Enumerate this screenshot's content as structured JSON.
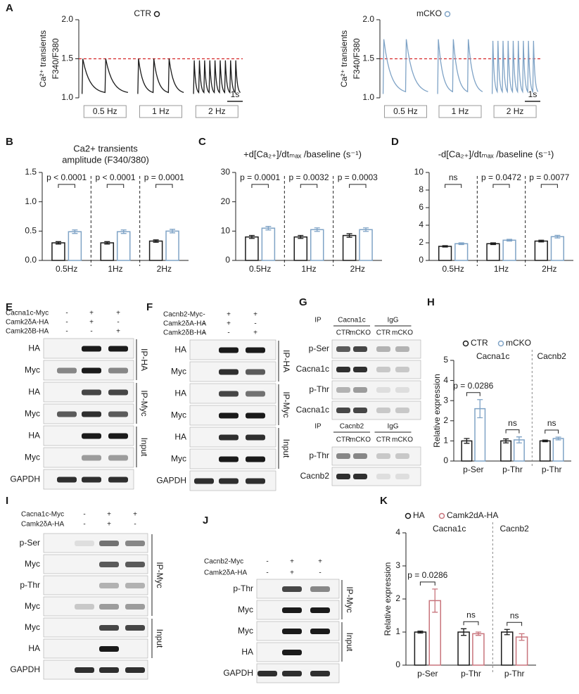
{
  "panel_labels": [
    "A",
    "B",
    "C",
    "D",
    "E",
    "F",
    "G",
    "H",
    "I",
    "J",
    "K"
  ],
  "traces": [
    {
      "legend": "CTR",
      "color": "#1a1a1a",
      "y_label": [
        "Ca²⁺ transients",
        "F340/F380"
      ],
      "ylim": [
        1,
        2
      ],
      "yticks": [
        {
          "value": 1,
          "label": "1.0"
        },
        1.5,
        {
          "value": 2,
          "label": "2.0"
        }
      ],
      "reference_line": 1.5,
      "reference_color": "#d62728",
      "scale_bar": "1s",
      "frequencies": [
        "0.5 Hz",
        "1 Hz",
        "2 Hz"
      ]
    },
    {
      "legend": "mCKO",
      "color": "#7fa3c6",
      "y_label": [
        "Ca²⁺ transients",
        "F340/F380"
      ],
      "ylim": [
        1,
        2
      ],
      "yticks": [
        {
          "value": 1,
          "label": "1.0"
        },
        1.5,
        {
          "value": 2,
          "label": "2.0"
        }
      ],
      "reference_line": 1.5,
      "reference_color": "#d62728",
      "scale_bar": "1s",
      "frequencies": [
        "0.5 Hz",
        "1 Hz",
        "2 Hz"
      ]
    }
  ],
  "chart_data": [
    {
      "type": "bar",
      "title": [
        "Ca2+ transients",
        "amplitude (F340/380)"
      ],
      "categories": [
        "0.5Hz",
        "1Hz",
        "2Hz"
      ],
      "series": [
        {
          "color": "#1a1a1a",
          "values": [
            0.3,
            0.3,
            0.33
          ],
          "errors": [
            0.02,
            0.02,
            0.02
          ]
        },
        {
          "color": "#7fa3c6",
          "values": [
            0.49,
            0.49,
            0.5
          ],
          "errors": [
            0.03,
            0.03,
            0.03
          ]
        }
      ],
      "ylim": [
        0,
        1.5
      ],
      "yticks": [
        {
          "value": 0,
          "label": "0.0"
        },
        0.5,
        {
          "value": 1,
          "label": "1.0"
        },
        1.5
      ],
      "annotations": [
        "p < 0.0001",
        "p < 0.0001",
        "p = 0.0001"
      ]
    },
    {
      "type": "bar",
      "title": "+d[Ca₂₊]/dtₘₐₓ /baseline (s⁻¹)",
      "categories": [
        "0.5Hz",
        "1Hz",
        "2Hz"
      ],
      "series": [
        {
          "color": "#1a1a1a",
          "values": [
            8,
            8,
            8.5
          ],
          "errors": [
            0.5,
            0.5,
            0.6
          ]
        },
        {
          "color": "#7fa3c6",
          "values": [
            11,
            10.5,
            10.5
          ],
          "errors": [
            0.6,
            0.6,
            0.6
          ]
        }
      ],
      "ylim": [
        0,
        30
      ],
      "yticks": [
        0,
        10,
        20,
        30
      ],
      "annotations": [
        "p = 0.0001",
        "p = 0.0032",
        "p = 0.0003"
      ]
    },
    {
      "type": "bar",
      "title": "-d[Ca₂₊]/dtₘₐₓ /baseline (s⁻¹)",
      "categories": [
        "0.5Hz",
        "1Hz",
        "2Hz"
      ],
      "series": [
        {
          "color": "#1a1a1a",
          "values": [
            1.6,
            1.9,
            2.2
          ],
          "errors": [
            0.08,
            0.1,
            0.1
          ]
        },
        {
          "color": "#7fa3c6",
          "values": [
            1.9,
            2.3,
            2.7
          ],
          "errors": [
            0.1,
            0.1,
            0.15
          ]
        }
      ],
      "ylim": [
        0,
        10
      ],
      "yticks": [
        0,
        2,
        4,
        6,
        8,
        10
      ],
      "annotations": [
        "ns",
        "p = 0.0472",
        "p = 0.0077"
      ]
    },
    {
      "type": "bar",
      "y_label": "Relative expression",
      "categories": [
        "p-Ser",
        "p-Thr",
        "p-Thr"
      ],
      "group_labels": [
        "Cacna1c",
        "Cacnb2"
      ],
      "series": [
        {
          "name": "CTR",
          "color": "#1a1a1a",
          "values": [
            1,
            1,
            1
          ],
          "errors": [
            0.12,
            0.1,
            0.04
          ]
        },
        {
          "name": "mCKO",
          "color": "#7fa3c6",
          "values": [
            2.6,
            1.05,
            1.12
          ],
          "errors": [
            0.45,
            0.15,
            0.07
          ]
        }
      ],
      "ylim": [
        0,
        5
      ],
      "yticks": [
        0,
        1,
        2,
        3,
        4,
        5
      ],
      "annotations": [
        "p = 0.0286",
        "ns",
        "ns"
      ]
    },
    {
      "type": "bar",
      "y_label": "Relative expression",
      "categories": [
        "p-Ser",
        "p-Thr",
        "p-Thr"
      ],
      "group_labels": [
        "Cacna1c",
        "Cacnb2"
      ],
      "series": [
        {
          "name": "HA",
          "color": "#1a1a1a",
          "values": [
            1,
            1,
            1
          ],
          "errors": [
            0.03,
            0.1,
            0.08
          ]
        },
        {
          "name": "Camk2dA-HA",
          "color": "#c8747c",
          "values": [
            1.95,
            0.95,
            0.85
          ],
          "errors": [
            0.35,
            0.05,
            0.1
          ]
        }
      ],
      "ylim": [
        0,
        4
      ],
      "yticks": [
        0,
        1,
        2,
        3,
        4
      ],
      "annotations": [
        "p = 0.0286",
        "ns",
        "ns"
      ]
    }
  ],
  "blots": [
    {
      "conditions": [
        {
          "name": "Cacna1c-Myc",
          "signs": [
            "-",
            "+",
            "+"
          ]
        },
        {
          "name": "Camk2δA-HA",
          "signs": [
            "-",
            "+",
            "-"
          ]
        },
        {
          "name": "Camk2δB-HA",
          "signs": [
            "-",
            "-",
            "+"
          ]
        }
      ],
      "rows": [
        "HA",
        "Myc",
        "HA",
        "Myc",
        "HA",
        "Myc",
        "GAPDH"
      ],
      "groups": [
        "IP-HA",
        "IP-Myc",
        "Input"
      ]
    },
    {
      "conditions": [
        {
          "name": "Cacnb2-Myc",
          "signs": [
            "-",
            "+",
            "+"
          ]
        },
        {
          "name": "Camk2δA-HA",
          "signs": [
            "-",
            "+",
            "-"
          ]
        },
        {
          "name": "Camk2δB-HA",
          "signs": [
            "-",
            "-",
            "+"
          ]
        }
      ],
      "rows": [
        "HA",
        "Myc",
        "HA",
        "Myc",
        "HA",
        "Myc",
        "GAPDH"
      ],
      "groups": [
        "IP-HA",
        "IP-Myc",
        "Input"
      ]
    },
    {
      "sections": [
        {
          "ip": "IP",
          "targets": [
            "Cacna1c",
            "IgG"
          ],
          "lanes": [
            "CTR",
            "mCKO",
            "CTR",
            "mCKO"
          ],
          "rows": [
            "p-Ser",
            "Cacna1c",
            "p-Thr",
            "Cacna1c"
          ]
        },
        {
          "ip": "IP",
          "targets": [
            "Cacnb2",
            "IgG"
          ],
          "lanes": [
            "CTR",
            "mCKO",
            "CTR",
            "mCKO"
          ],
          "rows": [
            "p-Thr",
            "Cacnb2"
          ]
        }
      ]
    },
    {
      "conditions": [
        {
          "name": "Cacna1c-Myc",
          "signs": [
            "-",
            "+",
            "+"
          ]
        },
        {
          "name": "Camk2δA-HA",
          "signs": [
            "-",
            "+",
            "-"
          ]
        }
      ],
      "rows": [
        "p-Ser",
        "Myc",
        "p-Thr",
        "Myc",
        "Myc",
        "HA",
        "GAPDH"
      ],
      "groups": [
        "IP-Myc",
        "Input"
      ]
    },
    {
      "conditions": [
        {
          "name": "Cacnb2-Myc",
          "signs": [
            "-",
            "+",
            "+"
          ]
        },
        {
          "name": "Camk2δA-HA",
          "signs": [
            "-",
            "+",
            "-"
          ]
        }
      ],
      "rows": [
        "p-Thr",
        "Myc",
        "Myc",
        "HA",
        "GAPDH"
      ],
      "groups": [
        "IP-Myc",
        "Input"
      ]
    }
  ]
}
